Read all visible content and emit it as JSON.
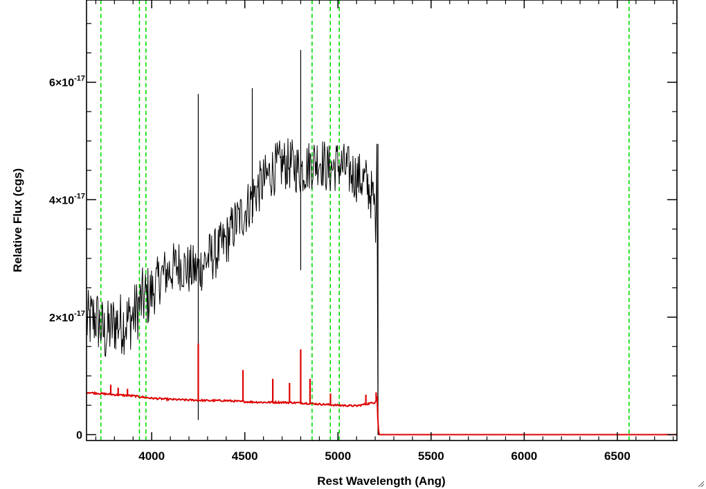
{
  "chart_data": {
    "type": "line",
    "title": "",
    "xlabel": "Rest Wavelength (Ang)",
    "ylabel": "Relative Flux (cgs)",
    "xlim": [
      3650,
      6820
    ],
    "ylim": [
      -1e-18,
      7.4e-17
    ],
    "x_ticks": [
      4000,
      4500,
      5000,
      5500,
      6000,
      6500
    ],
    "x_tick_labels": [
      "4000",
      "4500",
      "5000",
      "5500",
      "6000",
      "6500"
    ],
    "y_ticks": [
      0,
      2e-17,
      4e-17,
      6e-17
    ],
    "y_tick_labels": [
      {
        "mantissa": "0",
        "exponent": ""
      },
      {
        "mantissa": "2×10",
        "exponent": "-17"
      },
      {
        "mantissa": "4×10",
        "exponent": "-17"
      },
      {
        "mantissa": "6×10",
        "exponent": "-17"
      }
    ],
    "grid": false,
    "reference_lines_x": [
      3727,
      3934,
      3969,
      4861,
      4959,
      5007,
      6563
    ],
    "series": [
      {
        "color": "#000000",
        "style": "noisy",
        "x": [
          3650,
          3700,
          3750,
          3800,
          3850,
          3900,
          3950,
          4000,
          4050,
          4100,
          4150,
          4200,
          4250,
          4300,
          4350,
          4400,
          4450,
          4500,
          4550,
          4600,
          4650,
          4700,
          4750,
          4800,
          4850,
          4900,
          4950,
          5000,
          5050,
          5100,
          5150,
          5190,
          5200,
          5205,
          5215,
          5225,
          6820
        ],
        "y": [
          1.9e-17,
          2e-17,
          1.7e-17,
          1.9e-17,
          1.9e-17,
          2e-17,
          2.3e-17,
          2.4e-17,
          2.7e-17,
          2.8e-17,
          2.9e-17,
          2.8e-17,
          2.8e-17,
          3e-17,
          3.1e-17,
          3.3e-17,
          3.6e-17,
          3.8e-17,
          4.1e-17,
          4.3e-17,
          4.5e-17,
          4.6e-17,
          4.6e-17,
          4.5e-17,
          4.6e-17,
          4.7e-17,
          4.5e-17,
          4.6e-17,
          4.5e-17,
          4.4e-17,
          4.3e-17,
          4e-17,
          3.8e-17,
          3.5e-17,
          0,
          0,
          0
        ],
        "spikes": [
          {
            "x": 4250,
            "top": 5.8e-17,
            "bottom": 2.5e-18
          },
          {
            "x": 4800,
            "top": 6.55e-17,
            "bottom": 2.8e-17
          },
          {
            "x": 4540,
            "top": 5.9e-17,
            "bottom": 3.6e-17
          },
          {
            "x": 5215,
            "top": 4.95e-17,
            "bottom": 0
          }
        ]
      },
      {
        "color": "#dd0000",
        "style": "smooth",
        "x": [
          3650,
          3800,
          3900,
          4000,
          4100,
          4200,
          4300,
          4400,
          4500,
          4600,
          4700,
          4800,
          4900,
          5000,
          5100,
          5200,
          5210,
          5215,
          5220,
          6820
        ],
        "y": [
          7.2e-18,
          6.8e-18,
          6.6e-18,
          6.2e-18,
          6e-18,
          5.9e-18,
          5.8e-18,
          5.8e-18,
          5.6e-18,
          5.5e-18,
          5.5e-18,
          5.4e-18,
          5.2e-18,
          5e-18,
          4.9e-18,
          5.5e-18,
          6.5e-18,
          2e-18,
          0,
          0
        ],
        "spikes": [
          {
            "x": 3780,
            "top": 8.5e-18
          },
          {
            "x": 3820,
            "top": 8e-18
          },
          {
            "x": 3870,
            "top": 7.8e-18
          },
          {
            "x": 4250,
            "top": 1.55e-17
          },
          {
            "x": 4490,
            "top": 1.1e-17
          },
          {
            "x": 4650,
            "top": 9.5e-18
          },
          {
            "x": 4740,
            "top": 8.8e-18
          },
          {
            "x": 4800,
            "top": 1.45e-17
          },
          {
            "x": 4850,
            "top": 9.5e-18
          },
          {
            "x": 4960,
            "top": 7e-18
          },
          {
            "x": 5150,
            "top": 6.8e-18
          },
          {
            "x": 5205,
            "top": 7.2e-18
          }
        ]
      }
    ]
  },
  "colors": {
    "reference_line": "#00dd00",
    "axis": "#000000",
    "background": "#ffffff"
  },
  "icons": {
    "resize": "resize-grip-icon"
  }
}
